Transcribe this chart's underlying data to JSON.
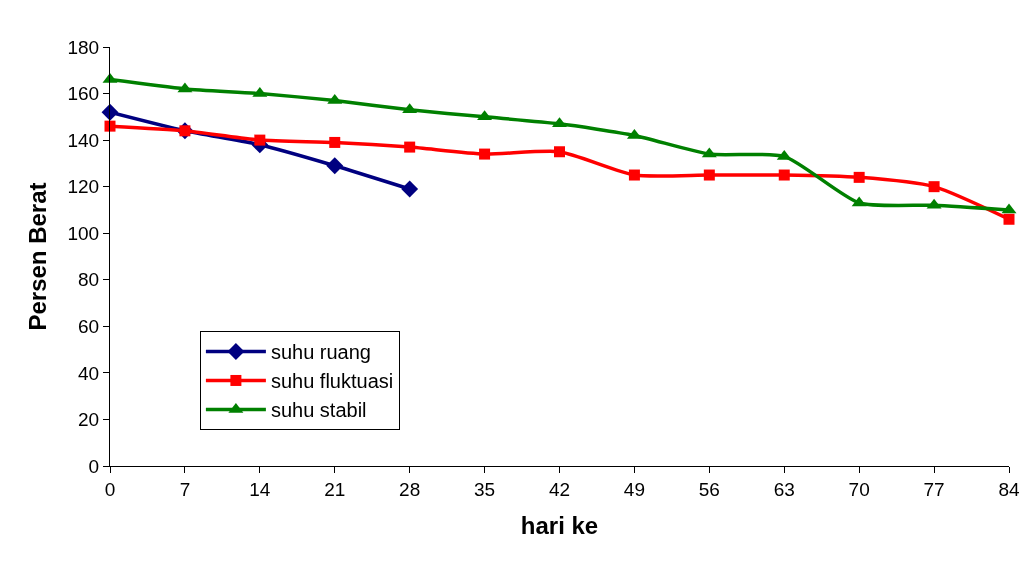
{
  "chart_data": {
    "type": "line",
    "xlabel": "hari ke",
    "ylabel": "Persen Berat",
    "x": [
      0,
      7,
      14,
      21,
      28,
      35,
      42,
      49,
      56,
      63,
      70,
      77,
      84
    ],
    "series": [
      {
        "name": "suhu ruang",
        "color": "#000080",
        "marker": "diamond",
        "x": [
          0,
          7,
          14,
          21,
          28
        ],
        "values": [
          152,
          144,
          138,
          129,
          119
        ]
      },
      {
        "name": "suhu fluktuasi",
        "color": "#ff0000",
        "marker": "square",
        "values": [
          146,
          144,
          140,
          139,
          137,
          134,
          135,
          125,
          125,
          125,
          124,
          120,
          106
        ]
      },
      {
        "name": "suhu stabil",
        "color": "#008000",
        "marker": "triangle",
        "values": [
          166,
          162,
          160,
          157,
          153,
          150,
          147,
          142,
          134,
          133,
          113,
          112,
          110
        ]
      }
    ],
    "xlim": [
      0,
      84
    ],
    "xticks": [
      0,
      7,
      14,
      21,
      28,
      35,
      42,
      49,
      56,
      63,
      70,
      77,
      84
    ],
    "ylim": [
      0,
      180
    ],
    "yticks": [
      0,
      20,
      40,
      60,
      80,
      100,
      120,
      140,
      160,
      180
    ],
    "legend": "bottom left",
    "line_style": "solid"
  }
}
